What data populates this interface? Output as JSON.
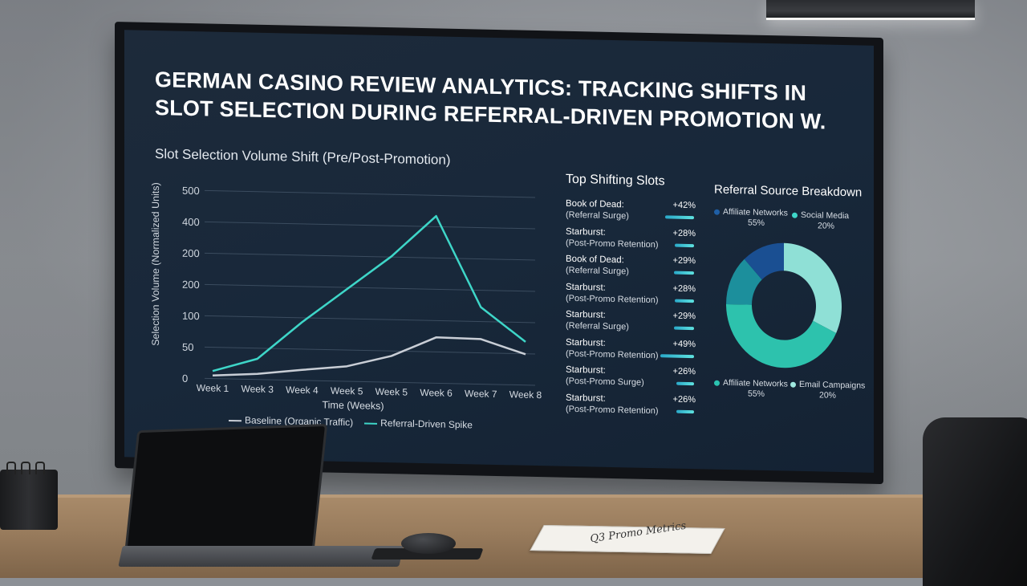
{
  "dashboard": {
    "title": "GERMAN CASINO REVIEW ANALYTICS: TRACKING SHIFTS IN SLOT SELECTION DURING REFERRAL-DRIVEN PROMOTION W."
  },
  "chart_data": {
    "type": "line",
    "title": "Slot Selection Volume Shift (Pre/Post-Promotion)",
    "xlabel": "Time (Weeks)",
    "ylabel": "Selection Volume (Normalized Units)",
    "categories": [
      "Week 1",
      "Week 3",
      "Week 4",
      "Week 5",
      "Week 5",
      "Week 6",
      "Week 7",
      "Week 8"
    ],
    "y_ticks": [
      "0",
      "50",
      "100",
      "200",
      "200",
      "400",
      "500"
    ],
    "series": [
      {
        "name": "Baseline (Organic Traffic)",
        "color": "#c9ced6",
        "values": [
          8,
          15,
          28,
          40,
          70,
          122,
          120,
          82
        ]
      },
      {
        "name": "Referral-Driven Spike",
        "color": "#3ed6c8",
        "values": [
          20,
          55,
          155,
          245,
          335,
          445,
          205,
          115
        ]
      }
    ],
    "grid": true,
    "legend": "bottom"
  },
  "slots_panel": {
    "title": "Top Shifting Slots",
    "items": [
      {
        "name": "Book of Dead:",
        "sub": "(Referral Surge)",
        "change": "+42%",
        "bar": 0.42
      },
      {
        "name": "Starburst:",
        "sub": "(Post-Promo Retention)",
        "change": "+28%",
        "bar": 0.28
      },
      {
        "name": "Book of Dead:",
        "sub": "(Referral Surge)",
        "change": "+29%",
        "bar": 0.29
      },
      {
        "name": "Starburst:",
        "sub": "(Post-Promo Retention)",
        "change": "+28%",
        "bar": 0.28
      },
      {
        "name": "Starburst:",
        "sub": "(Referral Surge)",
        "change": "+29%",
        "bar": 0.29
      },
      {
        "name": "Starburst:",
        "sub": "(Post-Promo Retention)",
        "change": "+49%",
        "bar": 0.49
      },
      {
        "name": "Starburst:",
        "sub": "(Post-Promo Surge)",
        "change": "+26%",
        "bar": 0.26
      },
      {
        "name": "Starburst:",
        "sub": "(Post-Promo Retention)",
        "change": "+26%",
        "bar": 0.26
      }
    ]
  },
  "referral_panel": {
    "title": "Referral Source Breakdown",
    "top_legend": [
      {
        "label": "Affiliate Networks",
        "value": "55%",
        "color": "#1f5fa6"
      },
      {
        "label": "Social Media",
        "value": "20%",
        "color": "#3ed6c8"
      }
    ],
    "bottom_legend": [
      {
        "label": "Affiliate Networks",
        "value": "55%",
        "color": "#2bc3b0"
      },
      {
        "label": "Email Campaigns",
        "value": "20%",
        "color": "#9fe8df"
      }
    ],
    "slices": [
      {
        "value": 32,
        "color": "#8fe0d6"
      },
      {
        "value": 43,
        "color": "#2dc2ad"
      },
      {
        "value": 13,
        "color": "#1c8f9c"
      },
      {
        "value": 12,
        "color": "#1a4f92"
      }
    ]
  },
  "desk": {
    "notebook_text": "Q3 Promo Metrics"
  }
}
